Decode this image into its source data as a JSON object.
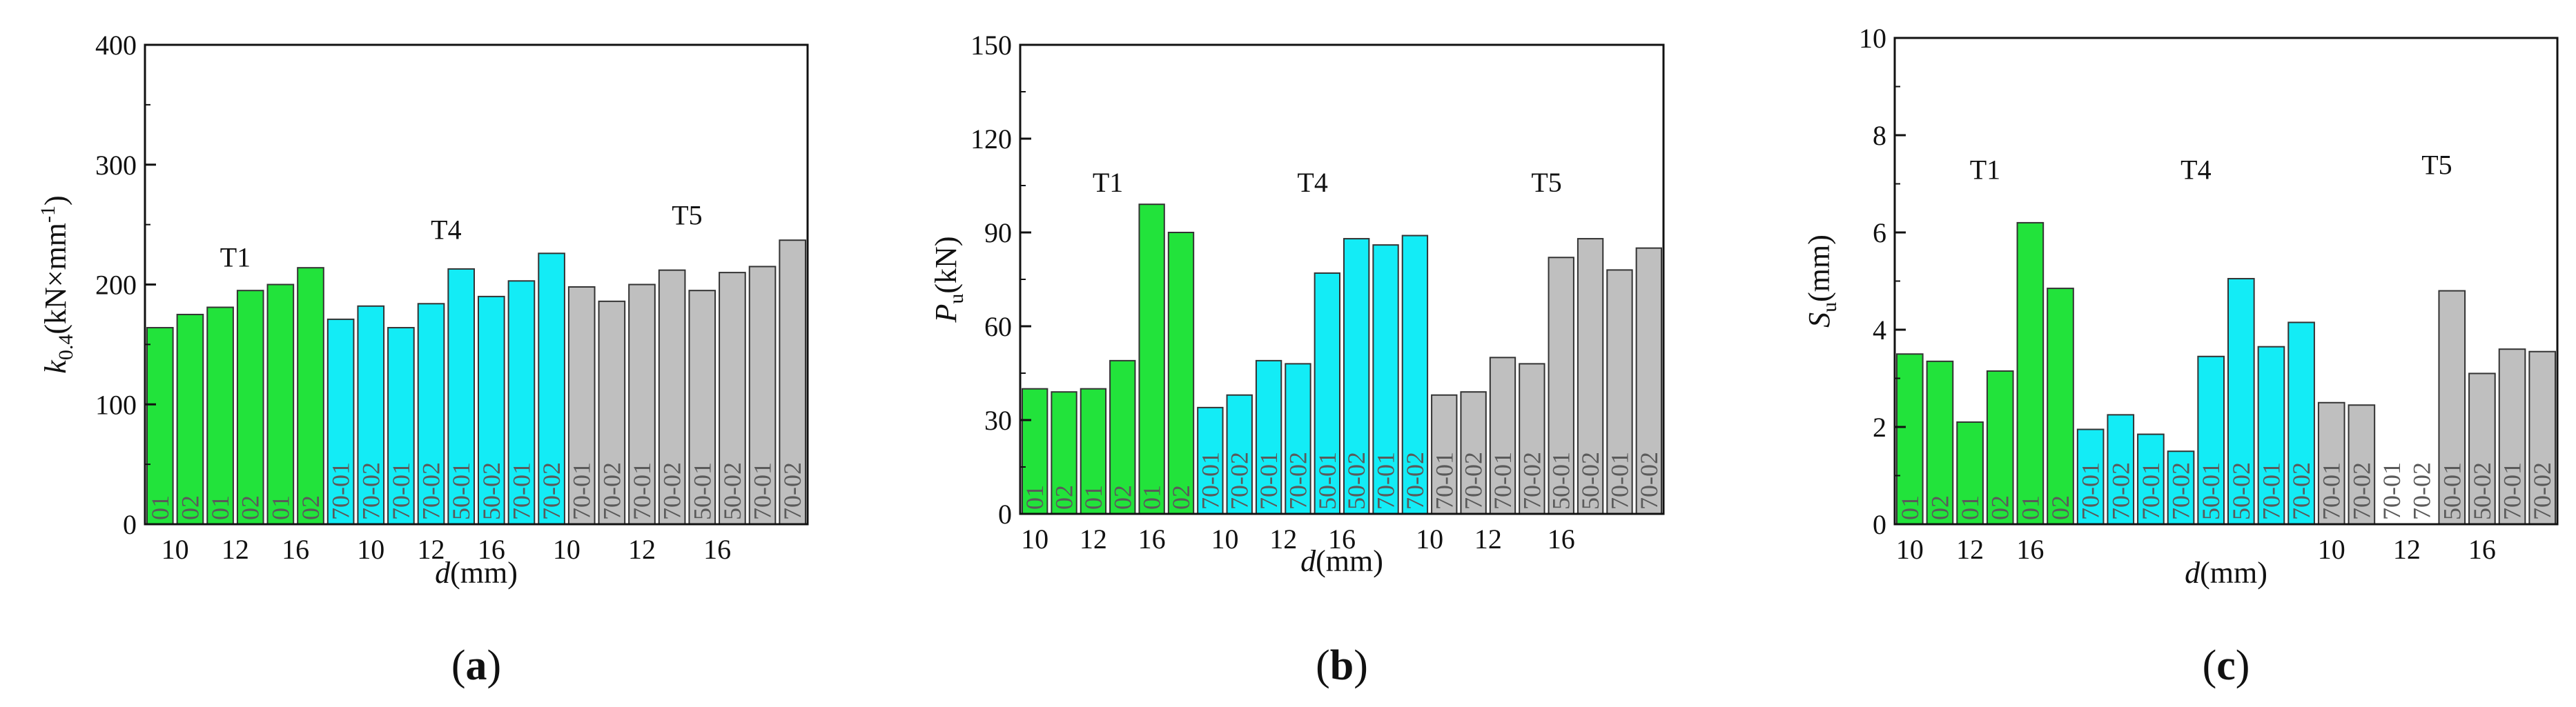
{
  "colors": {
    "T1": "#22e33b",
    "T4": "#13ecf6",
    "T5": "#bfbfbf",
    "axis": "#111111",
    "barLabel": "#5a5a5a"
  },
  "chart_data": [
    {
      "panel": "a",
      "panel_label": "(a)",
      "type": "bar",
      "ylabel_main": "k",
      "ylabel_sub": "0.4",
      "ylabel_unit": "(kN×mm",
      "ylabel_exp": "-1",
      "ylabel_close": ")",
      "xlabel_main": "d",
      "xlabel_unit": "(mm)",
      "ylim": [
        0,
        400
      ],
      "yticks": [
        "0",
        "100",
        "200",
        "300",
        "400"
      ],
      "group_labels": [
        {
          "text": "T1",
          "group": "T1",
          "y": 215
        },
        {
          "text": "T4",
          "group": "T4",
          "y": 238
        },
        {
          "text": "T5",
          "group": "T5",
          "y": 250
        }
      ],
      "xtick_labels": [
        "10",
        "12",
        "16",
        "10",
        "12",
        "16",
        "10",
        "12",
        "16"
      ],
      "xtick_slots": [
        1,
        3,
        5,
        7.5,
        9.5,
        11.5,
        14,
        16.5,
        19
      ],
      "bars": [
        {
          "group": "T1",
          "label": "01",
          "value": 164
        },
        {
          "group": "T1",
          "label": "02",
          "value": 175
        },
        {
          "group": "T1",
          "label": "01",
          "value": 181
        },
        {
          "group": "T1",
          "label": "02",
          "value": 195
        },
        {
          "group": "T1",
          "label": "01",
          "value": 200
        },
        {
          "group": "T1",
          "label": "02",
          "value": 214
        },
        {
          "group": "T4",
          "label": "70-01",
          "value": 171
        },
        {
          "group": "T4",
          "label": "70-02",
          "value": 182
        },
        {
          "group": "T4",
          "label": "70-01",
          "value": 164
        },
        {
          "group": "T4",
          "label": "70-02",
          "value": 184
        },
        {
          "group": "T4",
          "label": "50-01",
          "value": 213
        },
        {
          "group": "T4",
          "label": "50-02",
          "value": 190
        },
        {
          "group": "T4",
          "label": "70-01",
          "value": 203
        },
        {
          "group": "T4",
          "label": "70-02",
          "value": 226
        },
        {
          "group": "T5",
          "label": "70-01",
          "value": 198
        },
        {
          "group": "T5",
          "label": "70-02",
          "value": 186
        },
        {
          "group": "T5",
          "label": "70-01",
          "value": 200
        },
        {
          "group": "T5",
          "label": "70-02",
          "value": 212
        },
        {
          "group": "T5",
          "label": "50-01",
          "value": 195
        },
        {
          "group": "T5",
          "label": "50-02",
          "value": 210
        },
        {
          "group": "T5",
          "label": "70-01",
          "value": 215
        },
        {
          "group": "T5",
          "label": "70-02",
          "value": 237
        }
      ]
    },
    {
      "panel": "b",
      "panel_label": "(b)",
      "type": "bar",
      "ylabel_main": "P",
      "ylabel_sub": "u",
      "ylabel_unit": "(kN)",
      "ylabel_exp": "",
      "ylabel_close": "",
      "xlabel_main": "d",
      "xlabel_unit": "(mm)",
      "ylim": [
        0,
        150
      ],
      "yticks": [
        "0",
        "30",
        "60",
        "90",
        "120",
        "150"
      ],
      "group_labels": [
        {
          "text": "T1",
          "group": "T1",
          "y": 103
        },
        {
          "text": "T4",
          "group": "T4",
          "y": 103
        },
        {
          "text": "T5",
          "group": "T5",
          "y": 103
        }
      ],
      "xtick_labels": [
        "10",
        "12",
        "16",
        "10",
        "12",
        "16",
        "10",
        "12",
        "16"
      ],
      "xtick_slots": [
        0.5,
        2.5,
        4.5,
        7,
        9,
        11,
        14,
        16,
        18.5
      ],
      "bars": [
        {
          "group": "T1",
          "label": "01",
          "value": 40
        },
        {
          "group": "T1",
          "label": "02",
          "value": 39
        },
        {
          "group": "T1",
          "label": "01",
          "value": 40
        },
        {
          "group": "T1",
          "label": "02",
          "value": 49
        },
        {
          "group": "T1",
          "label": "01",
          "value": 99
        },
        {
          "group": "T1",
          "label": "02",
          "value": 90
        },
        {
          "group": "T4",
          "label": "70-01",
          "value": 34
        },
        {
          "group": "T4",
          "label": "70-02",
          "value": 38
        },
        {
          "group": "T4",
          "label": "70-01",
          "value": 49
        },
        {
          "group": "T4",
          "label": "70-02",
          "value": 48
        },
        {
          "group": "T4",
          "label": "50-01",
          "value": 77
        },
        {
          "group": "T4",
          "label": "50-02",
          "value": 88
        },
        {
          "group": "T4",
          "label": "70-01",
          "value": 86
        },
        {
          "group": "T4",
          "label": "70-02",
          "value": 89
        },
        {
          "group": "T5",
          "label": "70-01",
          "value": 38
        },
        {
          "group": "T5",
          "label": "70-02",
          "value": 39
        },
        {
          "group": "T5",
          "label": "70-01",
          "value": 50
        },
        {
          "group": "T5",
          "label": "70-02",
          "value": 48
        },
        {
          "group": "T5",
          "label": "50-01",
          "value": 82
        },
        {
          "group": "T5",
          "label": "50-02",
          "value": 88
        },
        {
          "group": "T5",
          "label": "70-01",
          "value": 78
        },
        {
          "group": "T5",
          "label": "70-02",
          "value": 85
        }
      ]
    },
    {
      "panel": "c",
      "panel_label": "(c)",
      "type": "bar",
      "ylabel_main": "S",
      "ylabel_sub": "u",
      "ylabel_unit": "(mm)",
      "ylabel_exp": "",
      "ylabel_close": "",
      "xlabel_main": "d",
      "xlabel_unit": "(mm)",
      "ylim": [
        0,
        10
      ],
      "yticks": [
        "0",
        "2",
        "4",
        "6",
        "8",
        "10"
      ],
      "group_labels": [
        {
          "text": "T1",
          "group": "T1",
          "y": 7.1
        },
        {
          "text": "T4",
          "group": "T4",
          "y": 7.1
        },
        {
          "text": "T5",
          "group": "T5",
          "y": 7.2
        }
      ],
      "xtick_labels": [
        "10",
        "12",
        "16",
        "10",
        "12",
        "16"
      ],
      "xtick_slots": [
        0.5,
        2.5,
        4.5,
        14.5,
        17,
        19.5
      ],
      "bars": [
        {
          "group": "T1",
          "label": "01",
          "value": 3.5
        },
        {
          "group": "T1",
          "label": "02",
          "value": 3.35
        },
        {
          "group": "T1",
          "label": "01",
          "value": 2.1
        },
        {
          "group": "T1",
          "label": "02",
          "value": 3.15
        },
        {
          "group": "T1",
          "label": "01",
          "value": 6.2
        },
        {
          "group": "T1",
          "label": "02",
          "value": 4.85
        },
        {
          "group": "T4",
          "label": "70-01",
          "value": 1.95
        },
        {
          "group": "T4",
          "label": "70-02",
          "value": 2.25
        },
        {
          "group": "T4",
          "label": "70-01",
          "value": 1.85
        },
        {
          "group": "T4",
          "label": "70-02",
          "value": 1.5
        },
        {
          "group": "T4",
          "label": "50-01",
          "value": 3.45
        },
        {
          "group": "T4",
          "label": "50-02",
          "value": 5.05
        },
        {
          "group": "T4",
          "label": "70-01",
          "value": 3.65
        },
        {
          "group": "T4",
          "label": "70-02",
          "value": 4.15
        },
        {
          "group": "T5",
          "label": "70-01",
          "value": 2.5
        },
        {
          "group": "T5",
          "label": "70-02",
          "value": 2.45
        },
        {
          "group": "T5",
          "label": "70-01",
          "value": 0
        },
        {
          "group": "T5",
          "label": "70-02",
          "value": 0
        },
        {
          "group": "T5",
          "label": "50-01",
          "value": 4.8
        },
        {
          "group": "T5",
          "label": "50-02",
          "value": 3.1
        },
        {
          "group": "T5",
          "label": "70-01",
          "value": 3.6
        },
        {
          "group": "T5",
          "label": "70-02",
          "value": 3.55
        }
      ]
    }
  ]
}
